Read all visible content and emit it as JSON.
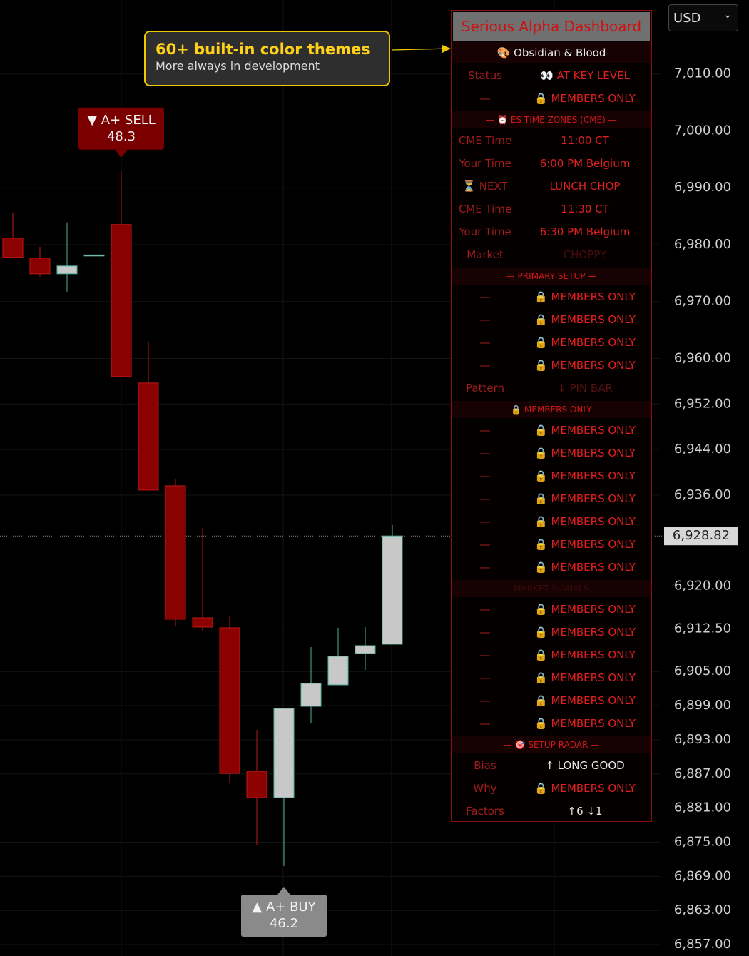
{
  "chart_data": {
    "type": "candlestick",
    "currency": "USD",
    "ylim": [
      6855,
      7023
    ],
    "yticks": [
      {
        "value": 7010,
        "label": "7,010.00"
      },
      {
        "value": 7000,
        "label": "7,000.00"
      },
      {
        "value": 6990,
        "label": "6,990.00"
      },
      {
        "value": 6980,
        "label": "6,980.00"
      },
      {
        "value": 6970,
        "label": "6,970.00"
      },
      {
        "value": 6960,
        "label": "6,960.00"
      },
      {
        "value": 6952,
        "label": "6,952.00"
      },
      {
        "value": 6944,
        "label": "6,944.00"
      },
      {
        "value": 6936,
        "label": "6,936.00"
      },
      {
        "value": 6920,
        "label": "6,920.00"
      },
      {
        "value": 6912.5,
        "label": "6,912.50"
      },
      {
        "value": 6905,
        "label": "6,905.00"
      },
      {
        "value": 6899,
        "label": "6,899.00"
      },
      {
        "value": 6893,
        "label": "6,893.00"
      },
      {
        "value": 6887,
        "label": "6,887.00"
      },
      {
        "value": 6881,
        "label": "6,881.00"
      },
      {
        "value": 6875,
        "label": "6,875.00"
      },
      {
        "value": 6869,
        "label": "6,869.00"
      },
      {
        "value": 6863,
        "label": "6,863.00"
      },
      {
        "value": 6857,
        "label": "6,857.00"
      }
    ],
    "last_price": {
      "value": 6928.82,
      "label": "6,928.82"
    },
    "up_color": "#c8c8c8",
    "down_color": "#8b0000",
    "open": [
      6981.15,
      6977.64,
      6974.88,
      6978.1,
      6983.54,
      6955.69,
      6937.63,
      6914.43,
      6912.68,
      6887.47,
      6882.83,
      6898.88,
      6902.65,
      6908.16,
      6909.79
    ],
    "high": [
      6985.67,
      6979.65,
      6983.91,
      6978.2,
      6992.94,
      6962.84,
      6938.76,
      6930.24,
      6914.81,
      6894.74,
      6898.51,
      6909.29,
      6912.68,
      6912.8,
      6930.74
    ],
    "low": [
      6977.77,
      6974.38,
      6971.75,
      6978.1,
      6956.82,
      6936.88,
      6912.93,
      6912.05,
      6885.46,
      6874.55,
      6870.79,
      6896.0,
      6902.65,
      6905.28,
      6909.79
    ],
    "close": [
      6977.77,
      6974.88,
      6976.26,
      6978.2,
      6956.82,
      6936.88,
      6914.18,
      6912.8,
      6887.09,
      6882.83,
      6898.51,
      6902.9,
      6907.67,
      6909.54,
      6928.82
    ],
    "annotations": [
      {
        "label": "▼ A+ SELL",
        "score": 48.3,
        "index": 4,
        "side": "above"
      },
      {
        "label": "▲ A+ BUY",
        "score": 46.2,
        "index": 10,
        "side": "below"
      }
    ]
  },
  "callout": {
    "title": "60+ built-in color themes",
    "subtitle": "More always in development"
  },
  "dashboard": {
    "title": "Serious Alpha Dashboard",
    "theme": "🎨 Obsidian & Blood",
    "rows": [
      {
        "label": "Status",
        "value": "👀 AT KEY LEVEL"
      },
      {
        "label": "—",
        "value": "🔒 MEMBERS ONLY"
      },
      {
        "section": "— ⏰ ES TIME ZONES (CME) —"
      },
      {
        "label": "CME Time",
        "value": "11:00 CT"
      },
      {
        "label": "Your Time",
        "value": "6:00 PM Belgium"
      },
      {
        "label": "⏳ NEXT",
        "value": "LUNCH CHOP"
      },
      {
        "label": "CME Time",
        "value": "11:30 CT"
      },
      {
        "label": "Your Time",
        "value": "6:30 PM Belgium"
      },
      {
        "label": "Market",
        "value": "CHOPPY",
        "color": "#4a0c0c"
      },
      {
        "section": "— PRIMARY SETUP —"
      },
      {
        "label": "—",
        "value": "🔒 MEMBERS ONLY"
      },
      {
        "label": "—",
        "value": "🔒 MEMBERS ONLY"
      },
      {
        "label": "—",
        "value": "🔒 MEMBERS ONLY"
      },
      {
        "label": "—",
        "value": "🔒 MEMBERS ONLY"
      },
      {
        "label": "Pattern",
        "value": "↓ PIN BAR",
        "color": "#5a1010"
      },
      {
        "section": "— 🔒 MEMBERS ONLY —"
      },
      {
        "label": "—",
        "value": "🔒 MEMBERS ONLY"
      },
      {
        "label": "—",
        "value": "🔒 MEMBERS ONLY"
      },
      {
        "label": "—",
        "value": "🔒 MEMBERS ONLY"
      },
      {
        "label": "—",
        "value": "🔒 MEMBERS ONLY"
      },
      {
        "label": "—",
        "value": "🔒 MEMBERS ONLY"
      },
      {
        "label": "—",
        "value": "🔒 MEMBERS ONLY"
      },
      {
        "label": "—",
        "value": "🔒 MEMBERS ONLY"
      },
      {
        "section": "— MARKET SIGNALS —",
        "color": "#3a0a0a"
      },
      {
        "label": "—",
        "value": "🔒 MEMBERS ONLY"
      },
      {
        "label": "—",
        "value": "🔒 MEMBERS ONLY"
      },
      {
        "label": "—",
        "value": "🔒 MEMBERS ONLY"
      },
      {
        "label": "—",
        "value": "🔒 MEMBERS ONLY"
      },
      {
        "label": "—",
        "value": "🔒 MEMBERS ONLY"
      },
      {
        "label": "—",
        "value": "🔒 MEMBERS ONLY"
      },
      {
        "section": "— 🎯 SETUP RADAR —"
      },
      {
        "label": "Bias",
        "value": "↑ LONG GOOD",
        "color": "#e8e8e8"
      },
      {
        "label": "Why",
        "value": "🔒 MEMBERS ONLY"
      },
      {
        "label": "Factors",
        "value": "↑6 ↓1",
        "color": "#e8e8e8"
      }
    ]
  }
}
